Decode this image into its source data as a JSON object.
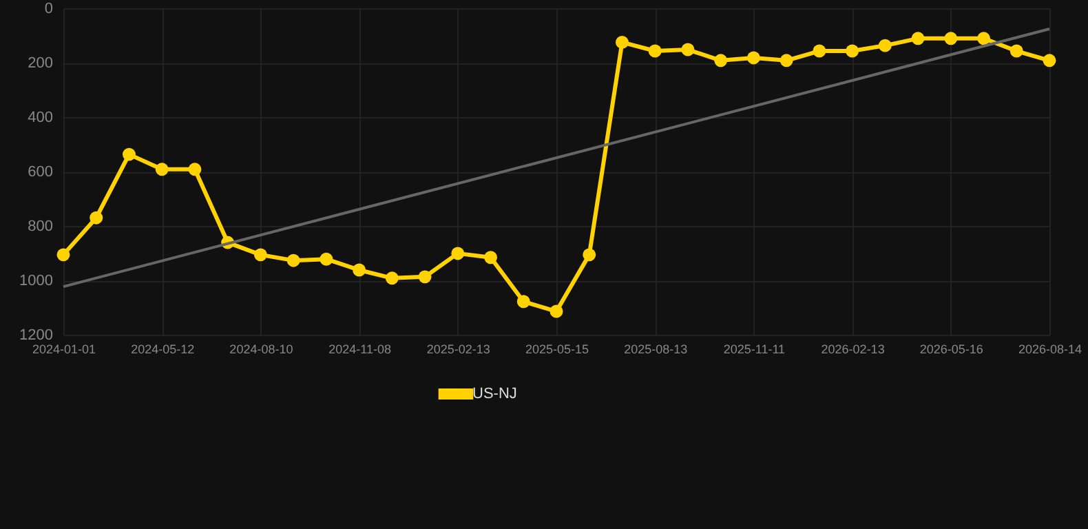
{
  "chart_data": {
    "type": "line",
    "categories": [
      "2024-01-01",
      null,
      null,
      "2024-05-12",
      null,
      null,
      "2024-08-10",
      null,
      null,
      "2024-11-08",
      null,
      null,
      "2025-02-13",
      null,
      null,
      "2025-05-15",
      null,
      null,
      "2025-08-13",
      null,
      null,
      "2025-11-11",
      null,
      null,
      "2026-02-13",
      null,
      null,
      "2026-05-16",
      null,
      null,
      "2026-08-14"
    ],
    "series": [
      {
        "name": "US-NJ",
        "color": "#ffd200",
        "marker": "circle",
        "values": [
          906,
          770,
          537,
          592,
          592,
          861,
          906,
          927,
          922,
          962,
          992,
          987,
          901,
          916,
          1078,
          1114,
          906,
          125,
          157,
          152,
          192,
          182,
          192,
          157,
          157,
          137,
          111,
          111,
          111,
          157,
          192
        ]
      },
      {
        "type": "line",
        "color": "#666666",
        "marker": "none",
        "values": [
          1023,
          null,
          null,
          null,
          null,
          null,
          null,
          null,
          null,
          null,
          null,
          null,
          null,
          null,
          null,
          null,
          null,
          null,
          null,
          null,
          null,
          null,
          null,
          null,
          null,
          null,
          null,
          null,
          null,
          null,
          76
        ]
      }
    ],
    "ylim": [
      1200,
      0
    ],
    "yticks": [
      0,
      200,
      400,
      600,
      800,
      1000,
      1200
    ],
    "grid": true,
    "legend": "bottom"
  }
}
